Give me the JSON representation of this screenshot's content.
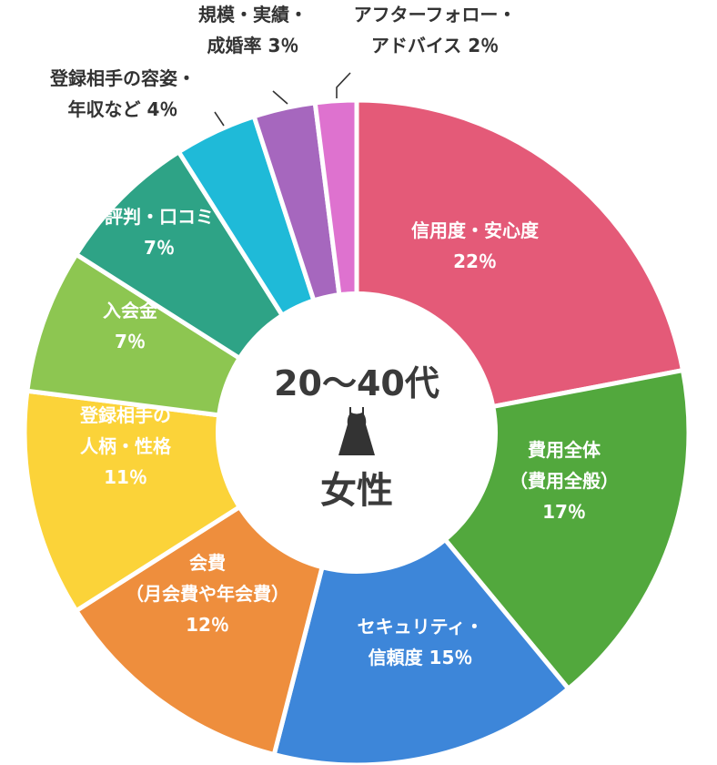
{
  "chart_data": {
    "type": "pie",
    "title": "",
    "center_label": {
      "line1": "20～40代",
      "line2": "女性"
    },
    "series": [
      {
        "name": "",
        "slices": [
          {
            "lines": [
              "信用度・安心度",
              "22％"
            ],
            "value": 22,
            "color": "#e45a78",
            "placement": "inside"
          },
          {
            "lines": [
              "費用全体",
              "（費用全般）",
              "17％"
            ],
            "value": 17,
            "color": "#52a83d",
            "placement": "inside"
          },
          {
            "lines": [
              "セキュリティ・",
              "信頼度 15％"
            ],
            "value": 15,
            "color": "#3d86d9",
            "placement": "inside"
          },
          {
            "lines": [
              "会費",
              "（月会費や年会費）",
              "12％"
            ],
            "value": 12,
            "color": "#ee8e3d",
            "placement": "inside"
          },
          {
            "lines": [
              "登録相手の",
              "人柄・性格",
              "11％"
            ],
            "value": 11,
            "color": "#fbd339",
            "placement": "inside",
            "text_color": "#333333"
          },
          {
            "lines": [
              "入会金",
              "7％"
            ],
            "value": 7,
            "color": "#8dc651",
            "placement": "inside"
          },
          {
            "lines": [
              "評判・口コミ",
              "7％"
            ],
            "value": 7,
            "color": "#2ea386",
            "placement": "inside"
          },
          {
            "lines": [
              "登録相手の容姿・",
              "年収など 4％"
            ],
            "value": 4,
            "color": "#1fbad8",
            "placement": "outside"
          },
          {
            "lines": [
              "規模・実績・",
              "成婚率 3％"
            ],
            "value": 3,
            "color": "#a667be",
            "placement": "outside"
          },
          {
            "lines": [
              "アフターフォロー・",
              "アドバイス 2％"
            ],
            "value": 2,
            "color": "#de72cf",
            "placement": "outside"
          }
        ]
      }
    ]
  }
}
